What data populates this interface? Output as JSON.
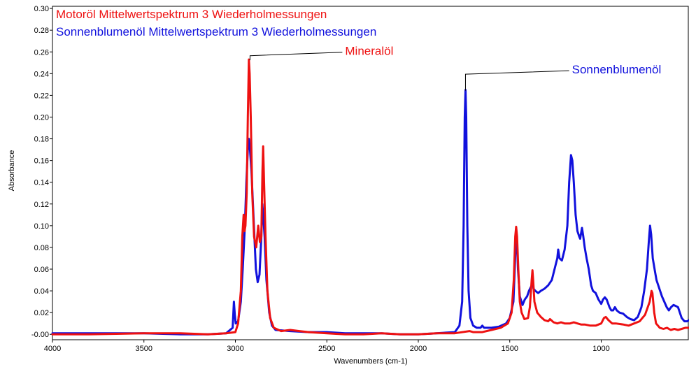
{
  "chart_data": {
    "type": "line",
    "xlabel": "Wavenumbers (cm-1)",
    "ylabel": "Absorbance",
    "xlim": [
      4000,
      520
    ],
    "ylim": [
      -0.005,
      0.302
    ],
    "x_ticks": [
      4000,
      3500,
      3000,
      2500,
      2000,
      1500,
      1000
    ],
    "x_tick_labels": [
      "4000",
      "3500",
      "3000",
      "2500",
      "2000",
      "1500",
      "1000"
    ],
    "y_ticks": [
      0,
      0.02,
      0.04,
      0.06,
      0.08,
      0.1,
      0.12,
      0.14,
      0.16,
      0.18,
      0.2,
      0.22,
      0.24,
      0.26,
      0.28,
      0.3
    ],
    "y_tick_labels": [
      "-0.00",
      "0.02",
      "0.04",
      "0.06",
      "0.08",
      "0.10",
      "0.12",
      "0.14",
      "0.16",
      "0.18",
      "0.20",
      "0.22",
      "0.24",
      "0.26",
      "0.28",
      "0.30"
    ],
    "series": [
      {
        "name": "Motoröl Mittelwertspektrum 3 Wiederholmessungen",
        "color": "#ee1111",
        "points": [
          [
            4000,
            0.0
          ],
          [
            3800,
            0.0
          ],
          [
            3500,
            0.001
          ],
          [
            3300,
            0.001
          ],
          [
            3150,
            0.0
          ],
          [
            3050,
            0.001
          ],
          [
            3000,
            0.002
          ],
          [
            2985,
            0.01
          ],
          [
            2970,
            0.04
          ],
          [
            2962,
            0.09
          ],
          [
            2955,
            0.11
          ],
          [
            2950,
            0.095
          ],
          [
            2945,
            0.1
          ],
          [
            2938,
            0.13
          ],
          [
            2932,
            0.2
          ],
          [
            2926,
            0.253
          ],
          [
            2922,
            0.24
          ],
          [
            2916,
            0.2
          ],
          [
            2908,
            0.13
          ],
          [
            2898,
            0.09
          ],
          [
            2886,
            0.08
          ],
          [
            2875,
            0.1
          ],
          [
            2866,
            0.085
          ],
          [
            2858,
            0.09
          ],
          [
            2852,
            0.15
          ],
          [
            2848,
            0.173
          ],
          [
            2843,
            0.14
          ],
          [
            2835,
            0.09
          ],
          [
            2825,
            0.04
          ],
          [
            2810,
            0.015
          ],
          [
            2790,
            0.006
          ],
          [
            2750,
            0.003
          ],
          [
            2700,
            0.004
          ],
          [
            2650,
            0.003
          ],
          [
            2600,
            0.002
          ],
          [
            2500,
            0.001
          ],
          [
            2400,
            0.0
          ],
          [
            2300,
            0.0
          ],
          [
            2200,
            0.001
          ],
          [
            2100,
            0.0
          ],
          [
            2000,
            0.0
          ],
          [
            1900,
            0.001
          ],
          [
            1800,
            0.001
          ],
          [
            1720,
            0.003
          ],
          [
            1700,
            0.002
          ],
          [
            1650,
            0.002
          ],
          [
            1600,
            0.004
          ],
          [
            1550,
            0.006
          ],
          [
            1510,
            0.01
          ],
          [
            1490,
            0.02
          ],
          [
            1478,
            0.05
          ],
          [
            1470,
            0.09
          ],
          [
            1465,
            0.099
          ],
          [
            1460,
            0.09
          ],
          [
            1453,
            0.06
          ],
          [
            1445,
            0.03
          ],
          [
            1435,
            0.02
          ],
          [
            1420,
            0.014
          ],
          [
            1400,
            0.015
          ],
          [
            1390,
            0.025
          ],
          [
            1380,
            0.05
          ],
          [
            1376,
            0.059
          ],
          [
            1372,
            0.05
          ],
          [
            1365,
            0.03
          ],
          [
            1350,
            0.02
          ],
          [
            1330,
            0.016
          ],
          [
            1310,
            0.013
          ],
          [
            1290,
            0.012
          ],
          [
            1280,
            0.014
          ],
          [
            1260,
            0.011
          ],
          [
            1240,
            0.01
          ],
          [
            1220,
            0.011
          ],
          [
            1200,
            0.01
          ],
          [
            1170,
            0.01
          ],
          [
            1150,
            0.011
          ],
          [
            1130,
            0.01
          ],
          [
            1110,
            0.009
          ],
          [
            1090,
            0.009
          ],
          [
            1060,
            0.008
          ],
          [
            1030,
            0.008
          ],
          [
            1000,
            0.01
          ],
          [
            985,
            0.015
          ],
          [
            975,
            0.016
          ],
          [
            960,
            0.013
          ],
          [
            940,
            0.01
          ],
          [
            920,
            0.01
          ],
          [
            880,
            0.009
          ],
          [
            850,
            0.008
          ],
          [
            820,
            0.01
          ],
          [
            790,
            0.012
          ],
          [
            760,
            0.018
          ],
          [
            735,
            0.03
          ],
          [
            725,
            0.04
          ],
          [
            720,
            0.038
          ],
          [
            710,
            0.02
          ],
          [
            700,
            0.01
          ],
          [
            680,
            0.006
          ],
          [
            660,
            0.005
          ],
          [
            640,
            0.006
          ],
          [
            620,
            0.004
          ],
          [
            600,
            0.005
          ],
          [
            580,
            0.004
          ],
          [
            560,
            0.005
          ],
          [
            540,
            0.006
          ],
          [
            520,
            0.006
          ]
        ]
      },
      {
        "name": "Sonnenblumenöl Mittelwertspektrum 3 Wiederholmessungen",
        "color": "#1111dd",
        "points": [
          [
            4000,
            0.001
          ],
          [
            3800,
            0.001
          ],
          [
            3600,
            0.001
          ],
          [
            3500,
            0.001
          ],
          [
            3300,
            0.0
          ],
          [
            3150,
            0.0
          ],
          [
            3050,
            0.001
          ],
          [
            3015,
            0.006
          ],
          [
            3008,
            0.03
          ],
          [
            3003,
            0.018
          ],
          [
            2998,
            0.01
          ],
          [
            2985,
            0.012
          ],
          [
            2970,
            0.03
          ],
          [
            2960,
            0.06
          ],
          [
            2948,
            0.1
          ],
          [
            2940,
            0.14
          ],
          [
            2932,
            0.17
          ],
          [
            2926,
            0.18
          ],
          [
            2920,
            0.17
          ],
          [
            2912,
            0.15
          ],
          [
            2904,
            0.12
          ],
          [
            2896,
            0.09
          ],
          [
            2888,
            0.06
          ],
          [
            2878,
            0.048
          ],
          [
            2868,
            0.055
          ],
          [
            2858,
            0.09
          ],
          [
            2853,
            0.12
          ],
          [
            2848,
            0.11
          ],
          [
            2840,
            0.09
          ],
          [
            2830,
            0.05
          ],
          [
            2815,
            0.02
          ],
          [
            2800,
            0.008
          ],
          [
            2780,
            0.004
          ],
          [
            2700,
            0.003
          ],
          [
            2600,
            0.002
          ],
          [
            2500,
            0.002
          ],
          [
            2400,
            0.001
          ],
          [
            2300,
            0.001
          ],
          [
            2200,
            0.001
          ],
          [
            2100,
            0.0
          ],
          [
            2000,
            0.0
          ],
          [
            1900,
            0.001
          ],
          [
            1800,
            0.002
          ],
          [
            1775,
            0.008
          ],
          [
            1760,
            0.03
          ],
          [
            1752,
            0.1
          ],
          [
            1746,
            0.2
          ],
          [
            1742,
            0.225
          ],
          [
            1738,
            0.2
          ],
          [
            1732,
            0.1
          ],
          [
            1725,
            0.04
          ],
          [
            1715,
            0.015
          ],
          [
            1700,
            0.008
          ],
          [
            1680,
            0.006
          ],
          [
            1660,
            0.006
          ],
          [
            1650,
            0.008
          ],
          [
            1640,
            0.006
          ],
          [
            1600,
            0.006
          ],
          [
            1560,
            0.007
          ],
          [
            1520,
            0.01
          ],
          [
            1500,
            0.015
          ],
          [
            1480,
            0.03
          ],
          [
            1468,
            0.08
          ],
          [
            1464,
            0.095
          ],
          [
            1460,
            0.085
          ],
          [
            1455,
            0.06
          ],
          [
            1445,
            0.035
          ],
          [
            1430,
            0.027
          ],
          [
            1418,
            0.032
          ],
          [
            1405,
            0.035
          ],
          [
            1395,
            0.04
          ],
          [
            1380,
            0.045
          ],
          [
            1376,
            0.055
          ],
          [
            1370,
            0.042
          ],
          [
            1360,
            0.04
          ],
          [
            1345,
            0.038
          ],
          [
            1330,
            0.04
          ],
          [
            1310,
            0.042
          ],
          [
            1290,
            0.045
          ],
          [
            1270,
            0.05
          ],
          [
            1255,
            0.06
          ],
          [
            1240,
            0.07
          ],
          [
            1235,
            0.078
          ],
          [
            1228,
            0.07
          ],
          [
            1215,
            0.068
          ],
          [
            1200,
            0.078
          ],
          [
            1185,
            0.1
          ],
          [
            1175,
            0.14
          ],
          [
            1165,
            0.165
          ],
          [
            1158,
            0.16
          ],
          [
            1150,
            0.14
          ],
          [
            1140,
            0.11
          ],
          [
            1130,
            0.095
          ],
          [
            1120,
            0.09
          ],
          [
            1115,
            0.088
          ],
          [
            1105,
            0.098
          ],
          [
            1098,
            0.09
          ],
          [
            1090,
            0.08
          ],
          [
            1080,
            0.07
          ],
          [
            1068,
            0.06
          ],
          [
            1055,
            0.045
          ],
          [
            1045,
            0.04
          ],
          [
            1030,
            0.038
          ],
          [
            1015,
            0.032
          ],
          [
            1000,
            0.028
          ],
          [
            990,
            0.032
          ],
          [
            980,
            0.034
          ],
          [
            970,
            0.032
          ],
          [
            955,
            0.025
          ],
          [
            945,
            0.022
          ],
          [
            935,
            0.022
          ],
          [
            925,
            0.025
          ],
          [
            915,
            0.022
          ],
          [
            900,
            0.02
          ],
          [
            880,
            0.019
          ],
          [
            860,
            0.016
          ],
          [
            840,
            0.014
          ],
          [
            820,
            0.013
          ],
          [
            800,
            0.016
          ],
          [
            780,
            0.025
          ],
          [
            765,
            0.04
          ],
          [
            750,
            0.06
          ],
          [
            740,
            0.085
          ],
          [
            733,
            0.1
          ],
          [
            727,
            0.092
          ],
          [
            718,
            0.07
          ],
          [
            708,
            0.06
          ],
          [
            698,
            0.05
          ],
          [
            688,
            0.045
          ],
          [
            678,
            0.04
          ],
          [
            668,
            0.035
          ],
          [
            655,
            0.03
          ],
          [
            642,
            0.025
          ],
          [
            630,
            0.022
          ],
          [
            618,
            0.025
          ],
          [
            605,
            0.027
          ],
          [
            592,
            0.026
          ],
          [
            580,
            0.025
          ],
          [
            570,
            0.02
          ],
          [
            560,
            0.015
          ],
          [
            545,
            0.012
          ],
          [
            530,
            0.012
          ],
          [
            520,
            0.013
          ]
        ]
      }
    ],
    "annotations": [
      {
        "text": "Mineralöl",
        "color": "#ee1111",
        "point": [
          2920,
          0.253
        ],
        "elbow_y": 0.2565,
        "label_x": 2400
      },
      {
        "text": "Sonnenblumenöl",
        "color": "#1111dd",
        "point": [
          1742,
          0.225
        ],
        "elbow_y": 0.2395,
        "label_x": 1160
      }
    ]
  }
}
